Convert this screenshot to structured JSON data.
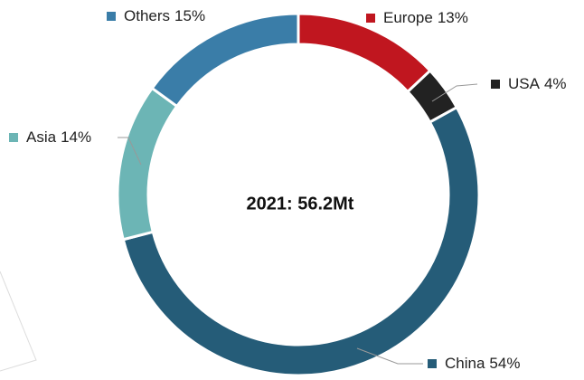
{
  "chart_data": {
    "type": "pie",
    "donut": true,
    "annotation": "2021: 56.2Mt",
    "categories": [
      "Europe",
      "USA",
      "China",
      "Asia",
      "Others"
    ],
    "values": [
      13,
      4,
      54,
      14,
      15
    ],
    "value_labels": [
      "13%",
      "4%",
      "54%",
      "14%",
      "15%"
    ],
    "colors": [
      "#c0161f",
      "#222222",
      "#255c78",
      "#6cb5b5",
      "#3a7da8"
    ]
  }
}
